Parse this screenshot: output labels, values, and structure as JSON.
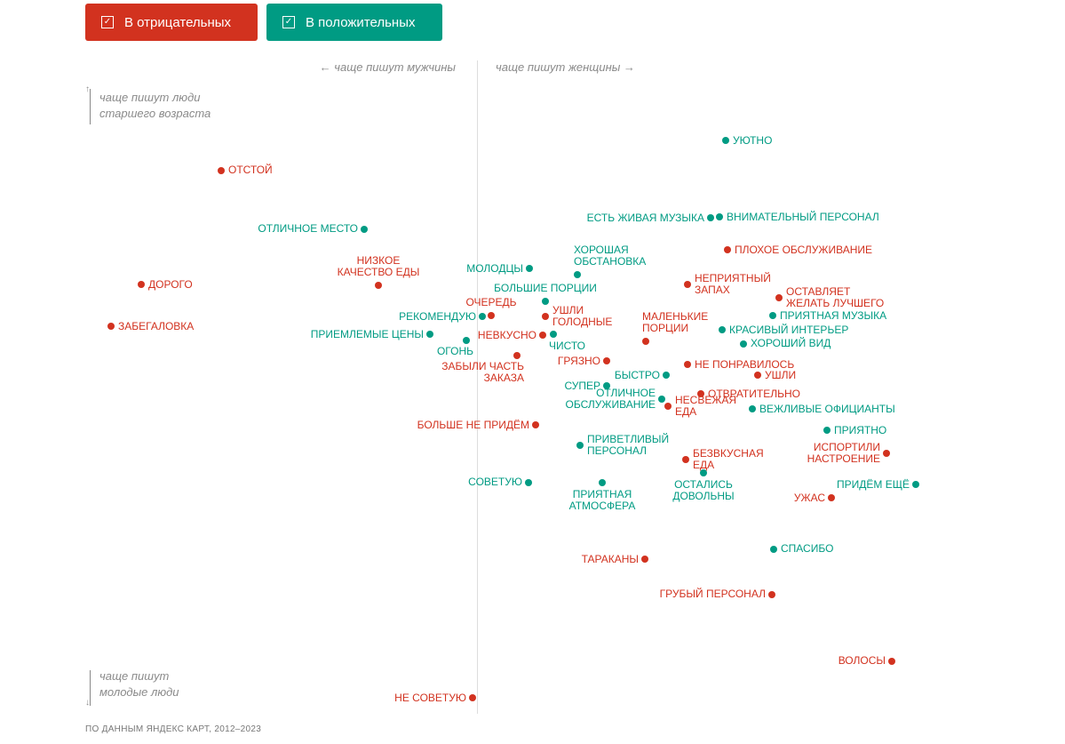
{
  "filters": {
    "negative_label": "В отрицательных",
    "positive_label": "В положительных",
    "negative_checked": true,
    "positive_checked": true
  },
  "colors": {
    "negative": "#d2321f",
    "positive": "#009b83"
  },
  "footer": "ПО ДАННЫМ ЯНДЕКС КАРТ, 2012–2023",
  "chart_data": {
    "type": "scatter",
    "xlabel_left": "← чаще пишут мужчины",
    "xlabel_right": "чаще пишут женщины →",
    "ylabel_top": "чаще пишут люди\nстаршего возраста",
    "ylabel_bottom": "чаще пишут\nмолодые люди",
    "xlim": [
      -90,
      100
    ],
    "ylim": [
      -110,
      110
    ],
    "grid": false,
    "points": [
      {
        "label": "уютно",
        "x": 56,
        "y": 104,
        "sentiment": "positive",
        "place": "right"
      },
      {
        "label": "отстой",
        "x": -57.6,
        "y": 92.7,
        "sentiment": "negative",
        "place": "right"
      },
      {
        "label": "есть живая музыка",
        "x": 52.6,
        "y": 75,
        "sentiment": "positive",
        "place": "left"
      },
      {
        "label": "внимательный персонал",
        "x": 54.6,
        "y": 75.3,
        "sentiment": "positive",
        "place": "right"
      },
      {
        "label": "отличное место",
        "x": -25.4,
        "y": 70.7,
        "sentiment": "positive",
        "place": "left"
      },
      {
        "label": "плохое обслуживание",
        "x": 56.4,
        "y": 63,
        "sentiment": "negative",
        "place": "right"
      },
      {
        "label": "хорошая\nобстановка",
        "x": 22.6,
        "y": 53.7,
        "sentiment": "positive",
        "place": "above-right"
      },
      {
        "label": "молодцы",
        "x": 11.8,
        "y": 56,
        "sentiment": "positive",
        "place": "left"
      },
      {
        "label": "низкое\nкачество еды",
        "x": -22.2,
        "y": 49.7,
        "sentiment": "negative",
        "place": "above"
      },
      {
        "label": "дорого",
        "x": -75.6,
        "y": 50,
        "sentiment": "negative",
        "place": "right"
      },
      {
        "label": "неприятный\nзапах",
        "x": 47.4,
        "y": 50,
        "sentiment": "negative",
        "place": "right"
      },
      {
        "label": "оставляет\nжелать лучшего",
        "x": 68,
        "y": 45,
        "sentiment": "negative",
        "place": "right"
      },
      {
        "label": "большие порции",
        "x": 15.4,
        "y": 43.7,
        "sentiment": "positive",
        "place": "above"
      },
      {
        "label": "очередь",
        "x": 3.2,
        "y": 38.3,
        "sentiment": "negative",
        "place": "above"
      },
      {
        "label": "рекомендую",
        "x": 1.2,
        "y": 38,
        "sentiment": "positive",
        "place": "left"
      },
      {
        "label": "ушли\nголодные",
        "x": 15.4,
        "y": 38,
        "sentiment": "negative",
        "place": "right"
      },
      {
        "label": "приятная музыка",
        "x": 66.6,
        "y": 38.3,
        "sentiment": "positive",
        "place": "right"
      },
      {
        "label": "забегаловка",
        "x": -82.4,
        "y": 34.3,
        "sentiment": "negative",
        "place": "right"
      },
      {
        "label": "красивый интерьер",
        "x": 55.2,
        "y": 33,
        "sentiment": "positive",
        "place": "right"
      },
      {
        "label": "приемлемые цены",
        "x": -10.6,
        "y": 31.3,
        "sentiment": "positive",
        "place": "left"
      },
      {
        "label": "невкусно",
        "x": 14.8,
        "y": 31,
        "sentiment": "negative",
        "place": "left"
      },
      {
        "label": "чисто",
        "x": 17.2,
        "y": 31.3,
        "sentiment": "positive",
        "place": "below-right"
      },
      {
        "label": "огонь",
        "x": -2.4,
        "y": 29,
        "sentiment": "positive",
        "place": "below-left"
      },
      {
        "label": "маленькие\nпорции",
        "x": 38,
        "y": 28.7,
        "sentiment": "negative",
        "place": "above-right"
      },
      {
        "label": "хороший вид",
        "x": 60,
        "y": 27.7,
        "sentiment": "positive",
        "place": "right"
      },
      {
        "label": "забыли часть\nзаказа",
        "x": 9,
        "y": 23.3,
        "sentiment": "negative",
        "place": "below-left"
      },
      {
        "label": "грязно",
        "x": 29.2,
        "y": 21.3,
        "sentiment": "negative",
        "place": "left"
      },
      {
        "label": "не понравилось",
        "x": 47.4,
        "y": 20,
        "sentiment": "negative",
        "place": "right"
      },
      {
        "label": "быстро",
        "x": 42.6,
        "y": 16,
        "sentiment": "positive",
        "place": "left"
      },
      {
        "label": "ушли",
        "x": 63.2,
        "y": 16,
        "sentiment": "negative",
        "place": "right"
      },
      {
        "label": "супер",
        "x": 29.2,
        "y": 12,
        "sentiment": "positive",
        "place": "left"
      },
      {
        "label": "отвратительно",
        "x": 50.4,
        "y": 9,
        "sentiment": "negative",
        "place": "right"
      },
      {
        "label": "отличное\nобслуживание",
        "x": 41.6,
        "y": 7,
        "sentiment": "positive",
        "place": "left"
      },
      {
        "label": "несвежая\nеда",
        "x": 43,
        "y": 4.3,
        "sentiment": "negative",
        "place": "right"
      },
      {
        "label": "вежливые официанты",
        "x": 62,
        "y": 3.3,
        "sentiment": "positive",
        "place": "right"
      },
      {
        "label": "больше не придём",
        "x": 13.2,
        "y": -2.7,
        "sentiment": "negative",
        "place": "left"
      },
      {
        "label": "приятно",
        "x": 78.8,
        "y": -4.7,
        "sentiment": "positive",
        "place": "right"
      },
      {
        "label": "приветливый\nперсонал",
        "x": 23.2,
        "y": -10.3,
        "sentiment": "positive",
        "place": "right"
      },
      {
        "label": "безвкусная\nеда",
        "x": 47,
        "y": -15.7,
        "sentiment": "negative",
        "place": "right"
      },
      {
        "label": "испортили\nнастроение",
        "x": 92.2,
        "y": -13.3,
        "sentiment": "negative",
        "place": "left"
      },
      {
        "label": "остались\nдовольны",
        "x": 51,
        "y": -20.7,
        "sentiment": "positive",
        "place": "below"
      },
      {
        "label": "советую",
        "x": 11.6,
        "y": -24.3,
        "sentiment": "positive",
        "place": "left"
      },
      {
        "label": "приятная\nатмосфера",
        "x": 28.2,
        "y": -24.3,
        "sentiment": "positive",
        "place": "below"
      },
      {
        "label": "придём ещё",
        "x": 98.8,
        "y": -25,
        "sentiment": "positive",
        "place": "left"
      },
      {
        "label": "ужас",
        "x": 79.8,
        "y": -30,
        "sentiment": "negative",
        "place": "left"
      },
      {
        "label": "спасибо",
        "x": 66.8,
        "y": -49.3,
        "sentiment": "positive",
        "place": "right"
      },
      {
        "label": "тараканы",
        "x": 37.8,
        "y": -53,
        "sentiment": "negative",
        "place": "left"
      },
      {
        "label": "грубый персонал",
        "x": 66.4,
        "y": -66.3,
        "sentiment": "negative",
        "place": "left"
      },
      {
        "label": "волосы",
        "x": 93.4,
        "y": -91.3,
        "sentiment": "negative",
        "place": "left"
      },
      {
        "label": "не советую",
        "x": -1,
        "y": -105,
        "sentiment": "negative",
        "place": "left"
      }
    ]
  }
}
